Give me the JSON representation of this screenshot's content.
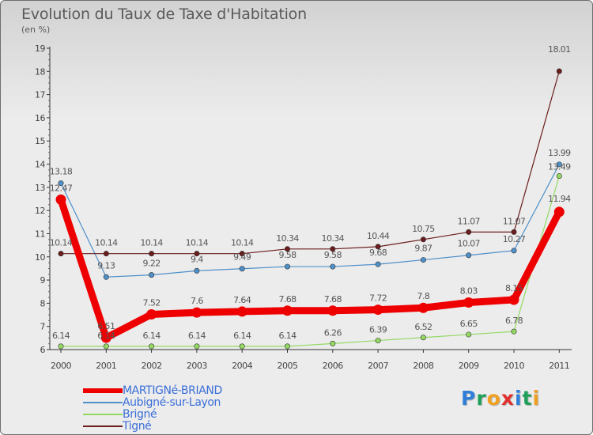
{
  "chart_data": {
    "type": "line",
    "title": "Evolution du Taux de Taxe d'Habitation",
    "subtitle": "(en %)",
    "x": [
      "2000",
      "2001",
      "2002",
      "2003",
      "2004",
      "2005",
      "2006",
      "2007",
      "2008",
      "2009",
      "2010",
      "2011"
    ],
    "ylim": [
      6,
      19
    ],
    "yticks": [
      "6",
      "7",
      "8",
      "9",
      "10",
      "11",
      "12",
      "13",
      "14",
      "15",
      "16",
      "17",
      "18",
      "19"
    ],
    "grid": false,
    "legend_position": "bottom-left",
    "series": [
      {
        "name": "MARTIGNé-BRIAND",
        "color": "#ee0000",
        "values": [
          12.47,
          6.51,
          7.52,
          7.6,
          7.64,
          7.68,
          7.68,
          7.72,
          7.8,
          8.03,
          8.15,
          11.94
        ],
        "labels": [
          "12.47",
          "6.51",
          "7.52",
          "7.6",
          "7.64",
          "7.68",
          "7.68",
          "7.72",
          "7.8",
          "8.03",
          "8.15",
          "11.94"
        ]
      },
      {
        "name": "Aubigné-sur-Layon",
        "color": "#4f90c9",
        "values": [
          13.18,
          9.13,
          9.22,
          9.4,
          9.49,
          9.58,
          9.58,
          9.68,
          9.87,
          10.07,
          10.27,
          13.99
        ],
        "labels": [
          "13.18",
          "9.13",
          "9.22",
          "9.4",
          "9.49",
          "9.58",
          "9.58",
          "9.68",
          "9.87",
          "10.07",
          "10.27",
          "13.99"
        ]
      },
      {
        "name": "Brigné",
        "color": "#94d962",
        "values": [
          6.14,
          6.14,
          6.14,
          6.14,
          6.14,
          6.14,
          6.26,
          6.39,
          6.52,
          6.65,
          6.78,
          13.49
        ],
        "labels": [
          "6.14",
          "6.14",
          "6.14",
          "6.14",
          "6.14",
          "6.14",
          "6.26",
          "6.39",
          "6.52",
          "6.65",
          "6.78",
          "13.49"
        ]
      },
      {
        "name": "Tigné",
        "color": "#6b1c1c",
        "values": [
          10.14,
          10.14,
          10.14,
          10.14,
          10.14,
          10.34,
          10.34,
          10.44,
          10.75,
          11.07,
          11.07,
          18.01
        ],
        "labels": [
          "10.14",
          "10.14",
          "10.14",
          "10.14",
          "10.14",
          "10.34",
          "10.34",
          "10.44",
          "10.75",
          "11.07",
          "11.07",
          "18.01"
        ]
      }
    ]
  },
  "legend": [
    {
      "label": "MARTIGNé-BRIAND",
      "color": "#ee0000"
    },
    {
      "label": "Aubigné-sur-Layon",
      "color": "#4f90c9"
    },
    {
      "label": "Brigné",
      "color": "#94d962"
    },
    {
      "label": "Tigné",
      "color": "#6b1c1c"
    }
  ],
  "brand": {
    "letters": [
      "P",
      "r",
      "o",
      "x",
      "i",
      "t",
      "i"
    ],
    "colors": [
      "#2f7fd8",
      "#1fa05a",
      "#f0a020",
      "#e03030",
      "#2f7fd8",
      "#1fa05a",
      "#f0a020"
    ]
  }
}
